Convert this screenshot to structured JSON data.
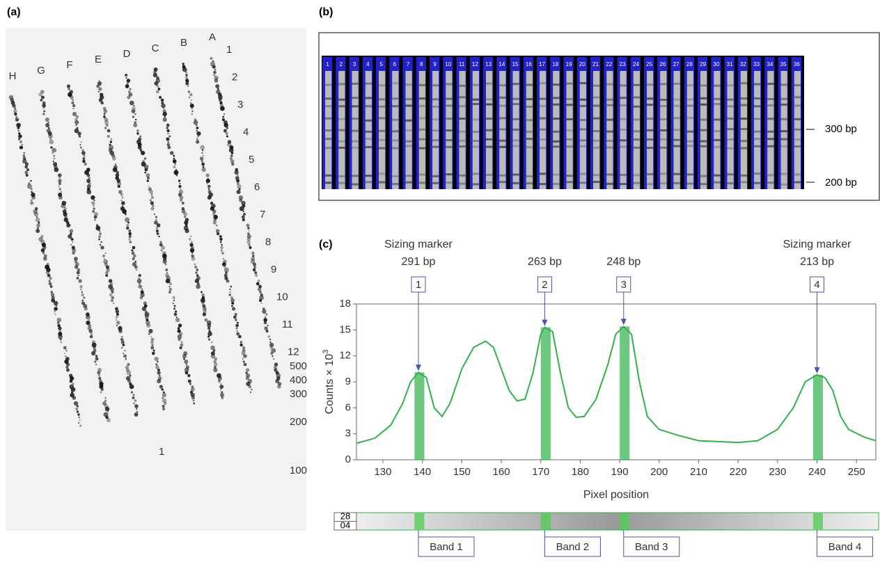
{
  "panels": {
    "a": {
      "label": "(a)",
      "lanes": [
        "H",
        "G",
        "F",
        "E",
        "D",
        "C",
        "B",
        "A"
      ],
      "rows": [
        "1",
        "2",
        "3",
        "4",
        "5",
        "6",
        "7",
        "8",
        "9",
        "10",
        "11",
        "12"
      ],
      "sizes": [
        "500",
        "400",
        "300",
        "200",
        "100"
      ],
      "inner_label": "1"
    },
    "b": {
      "label": "(b)",
      "lane_numbers": [
        "1",
        "2",
        "3",
        "4",
        "5",
        "6",
        "7",
        "8",
        "9",
        "10",
        "11",
        "12",
        "13",
        "14",
        "15",
        "16",
        "17",
        "18",
        "19",
        "20",
        "21",
        "22",
        "23",
        "24",
        "25",
        "26",
        "27",
        "28",
        "29",
        "30",
        "31",
        "32",
        "33",
        "34",
        "35",
        "36"
      ],
      "markers": [
        "300 bp",
        "200 bp"
      ]
    },
    "c": {
      "label": "(c)",
      "strip_labels": [
        "28",
        "04"
      ]
    }
  },
  "chart_data": {
    "type": "line",
    "x_label": "Pixel position",
    "y_label": "Counts × 10",
    "y_label_sup": "3",
    "xlim": [
      123.3,
      254.9
    ],
    "ylim": [
      0,
      18
    ],
    "xticks": [
      130,
      140,
      150,
      160,
      170,
      180,
      190,
      200,
      210,
      220,
      230,
      240,
      250
    ],
    "yticks": [
      0,
      3,
      6,
      9,
      12,
      15,
      18
    ],
    "color": "#2fb24a",
    "x": [
      123.3,
      128,
      132,
      135,
      137,
      139,
      141,
      143,
      145,
      147,
      150,
      153,
      156,
      158,
      160,
      162,
      164,
      166,
      168,
      170,
      171,
      173,
      175,
      177,
      179,
      181,
      184,
      187,
      189,
      191,
      193,
      195,
      197,
      200,
      205,
      210,
      215,
      220,
      225,
      230,
      234,
      237,
      240,
      242,
      244,
      246,
      248,
      252,
      254.9
    ],
    "values": [
      1.9,
      2.5,
      4,
      6.5,
      9,
      10.1,
      9.5,
      6,
      5,
      6.5,
      10.5,
      13,
      13.7,
      13,
      10.5,
      8,
      6.8,
      7,
      10,
      14.5,
      15.3,
      14.8,
      10,
      6,
      4.9,
      5,
      7,
      11,
      14.5,
      15.4,
      14.5,
      9,
      5,
      3.5,
      2.8,
      2.2,
      2.1,
      2.0,
      2.2,
      3.5,
      6,
      9,
      9.8,
      9.5,
      8,
      5,
      3.5,
      2.6,
      2.2
    ],
    "peaks": [
      {
        "number": "1",
        "x": 139,
        "y": 10.1,
        "caption": "Sizing marker",
        "size": "291 bp",
        "band": "Band 1",
        "range": [
          138,
          140.5
        ]
      },
      {
        "number": "2",
        "x": 171,
        "y": 15.3,
        "size": "263 bp",
        "band": "Band 2",
        "range": [
          170,
          172.5
        ]
      },
      {
        "number": "3",
        "x": 191,
        "y": 15.4,
        "size": "248 bp",
        "band": "Band 3",
        "range": [
          190,
          192.5
        ]
      },
      {
        "number": "4",
        "x": 240,
        "y": 9.8,
        "caption": "Sizing marker",
        "size": "213 bp",
        "band": "Band 4",
        "range": [
          239,
          241.5
        ]
      }
    ]
  }
}
